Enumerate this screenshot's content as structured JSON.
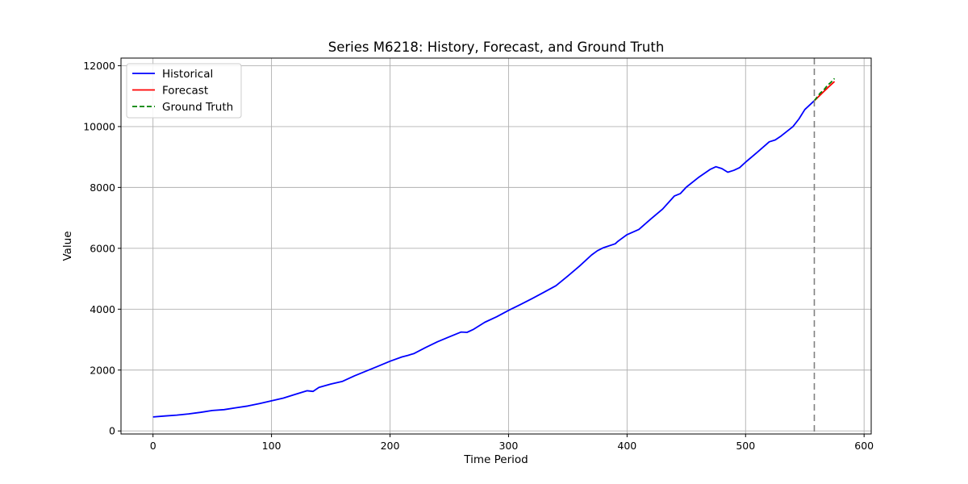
{
  "chart_data": {
    "type": "line",
    "title": "Series M6218: History, Forecast, and Ground Truth",
    "xlabel": "Time Period",
    "ylabel": "Value",
    "xlim": [
      -27,
      606
    ],
    "ylim": [
      -100,
      12250
    ],
    "xticks": [
      0,
      100,
      200,
      300,
      400,
      500,
      600
    ],
    "yticks": [
      0,
      2000,
      4000,
      6000,
      8000,
      10000,
      12000
    ],
    "grid": true,
    "legend_position": "top-left",
    "forecast_start": 558,
    "series": [
      {
        "name": "Historical",
        "color": "#0000ff",
        "style": "solid",
        "x": [
          0,
          10,
          20,
          30,
          40,
          50,
          60,
          70,
          80,
          90,
          100,
          110,
          120,
          130,
          135,
          140,
          150,
          160,
          170,
          180,
          190,
          200,
          210,
          215,
          220,
          230,
          240,
          250,
          260,
          265,
          270,
          280,
          290,
          300,
          310,
          320,
          330,
          340,
          350,
          360,
          370,
          375,
          380,
          390,
          392,
          394,
          400,
          410,
          420,
          430,
          440,
          445,
          450,
          460,
          470,
          475,
          480,
          485,
          490,
          495,
          500,
          510,
          520,
          525,
          530,
          540,
          545,
          550,
          558
        ],
        "y": [
          460,
          490,
          520,
          560,
          610,
          670,
          700,
          760,
          820,
          900,
          990,
          1080,
          1200,
          1320,
          1300,
          1430,
          1540,
          1630,
          1810,
          1970,
          2130,
          2290,
          2430,
          2480,
          2540,
          2740,
          2930,
          3090,
          3250,
          3240,
          3330,
          3570,
          3750,
          3960,
          4150,
          4350,
          4560,
          4770,
          5090,
          5420,
          5780,
          5920,
          6020,
          6150,
          6220,
          6280,
          6450,
          6620,
          6960,
          7290,
          7720,
          7800,
          8010,
          8320,
          8590,
          8680,
          8620,
          8500,
          8560,
          8650,
          8830,
          9160,
          9500,
          9560,
          9690,
          10000,
          10250,
          10560,
          10850
        ]
      },
      {
        "name": "Forecast",
        "color": "#ff0000",
        "style": "solid",
        "x": [
          558,
          562,
          566,
          570,
          575
        ],
        "y": [
          10850,
          11000,
          11150,
          11300,
          11480
        ]
      },
      {
        "name": "Ground Truth",
        "color": "#008000",
        "style": "dashed",
        "x": [
          558,
          560,
          563,
          566,
          569,
          572,
          575
        ],
        "y": [
          10850,
          10950,
          11100,
          11200,
          11350,
          11450,
          11580
        ]
      }
    ]
  }
}
